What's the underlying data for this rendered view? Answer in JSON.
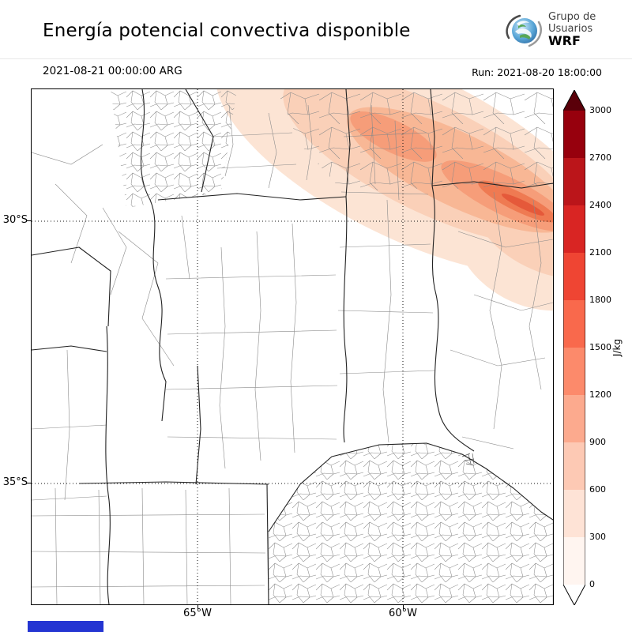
{
  "header": {
    "title": "Energía potencial convectiva disponible",
    "logo": {
      "org_line1": "Grupo de",
      "org_line2": "Usuarios",
      "org_line3": "WRF"
    }
  },
  "subheader": {
    "valid_time": "2021-08-21 00:00:00 ARG",
    "run": "Run: 2021-08-20 18:00:00"
  },
  "map": {
    "lat_ticks": [
      "30°S",
      "35°S"
    ],
    "lon_ticks": [
      "65°W",
      "60°W"
    ]
  },
  "colorbar": {
    "unit": "J/kg",
    "tick_labels_top_to_bottom": [
      "3000",
      "2700",
      "2400",
      "2100",
      "1800",
      "1500",
      "1200",
      "900",
      "600",
      "300",
      "0"
    ],
    "segment_colors_top_to_bottom": [
      "#97000d",
      "#bb151a",
      "#d92523",
      "#ef4533",
      "#f9694c",
      "#fc8a6b",
      "#fcaa8e",
      "#fdc9b4",
      "#fee3d6",
      "#fff5f0"
    ],
    "over_arrow_color": "#5a0009",
    "under_arrow_color": "#ffffff"
  },
  "footer": {
    "blue_bar_color": "#2435d2"
  },
  "chart_data": {
    "type": "heatmap",
    "title": "Energía potencial convectiva disponible",
    "valid_time": "2021-08-21 00:00:00 ARG",
    "run_time": "Run: 2021-08-20 18:00:00",
    "units": "J/kg",
    "levels": [
      0,
      300,
      600,
      900,
      1200,
      1500,
      1800,
      2100,
      2400,
      2700,
      3000
    ],
    "colorbar_extend": "both",
    "lat_ticks_deg_s": [
      30,
      35
    ],
    "lon_ticks_deg_w": [
      65,
      60
    ],
    "shading_summary": "CAPE band oriented NW-SE over the northeast of the domain; background near 0 elsewhere; band mostly 300-900 J/kg with elongated local maxima around 1200-1500 J/kg near 58-57W / 29-30S"
  }
}
